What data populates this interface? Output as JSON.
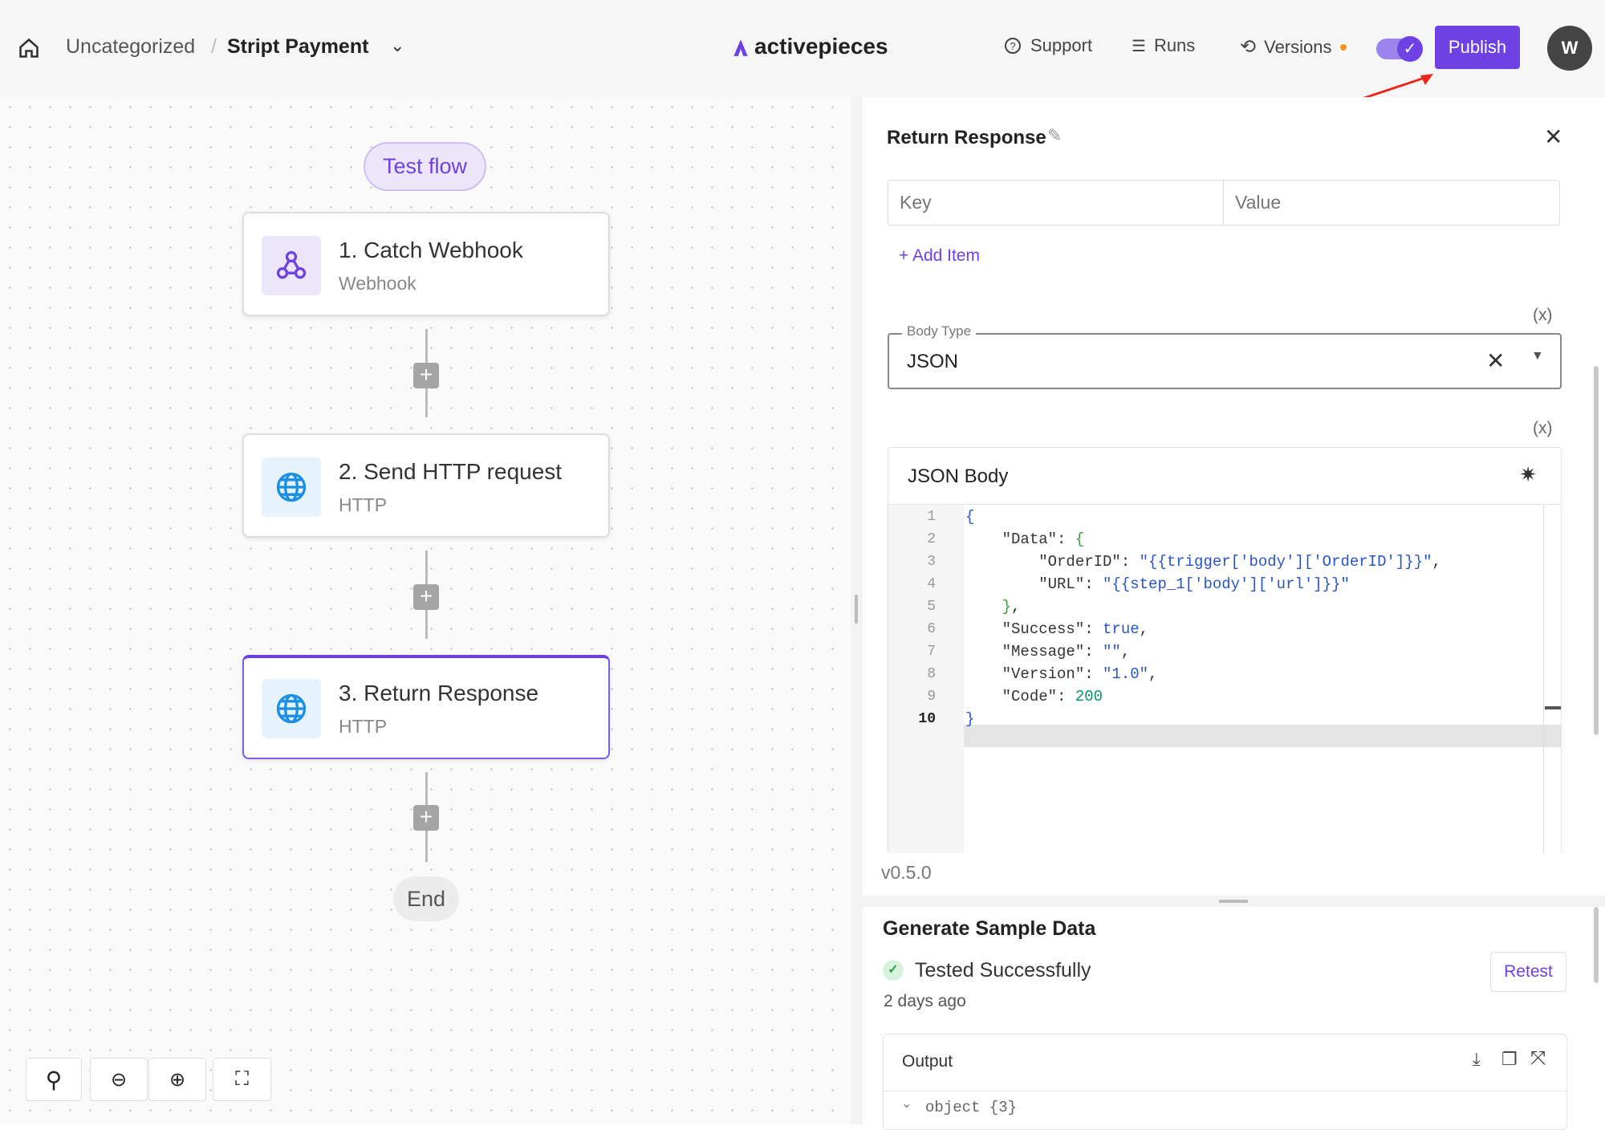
{
  "header": {
    "breadcrumb_folder": "Uncategorized",
    "breadcrumb_sep": "/",
    "flow_name": "Stript Payment",
    "logo_text": "activepieces",
    "support": "Support",
    "runs": "Runs",
    "versions": "Versions",
    "publish": "Publish",
    "avatar": "W",
    "accent": "#6e41e2"
  },
  "canvas": {
    "test_flow": "Test flow",
    "steps": [
      {
        "title": "1. Catch Webhook",
        "subtitle": "Webhook",
        "icon": "webhook-icon"
      },
      {
        "title": "2. Send HTTP request",
        "subtitle": "HTTP",
        "icon": "globe-icon"
      },
      {
        "title": "3. Return Response",
        "subtitle": "HTTP",
        "icon": "globe-icon"
      }
    ],
    "end": "End"
  },
  "panel": {
    "title": "Return Response",
    "key_placeholder": "Key",
    "value_placeholder": "Value",
    "add_item": "+ Add Item",
    "var_toggle": "(x)",
    "body_type_label": "Body Type",
    "body_type_value": "JSON",
    "json_body_label": "JSON Body",
    "code_lines": [
      "{",
      "    \"Data\": {",
      "        \"OrderID\": \"{{trigger['body']['OrderID']}}\",",
      "        \"URL\": \"{{step_1['body']['url']}}\"",
      "    },",
      "    \"Success\": true,",
      "    \"Message\": \"\",",
      "    \"Version\": \"1.0\",",
      "    \"Code\": 200",
      "}"
    ],
    "version": "v0.5.0"
  },
  "sample": {
    "title": "Generate Sample Data",
    "status": "Tested Successfully",
    "time": "2 days ago",
    "retest": "Retest",
    "output_label": "Output",
    "output_tree": "object {3}"
  }
}
